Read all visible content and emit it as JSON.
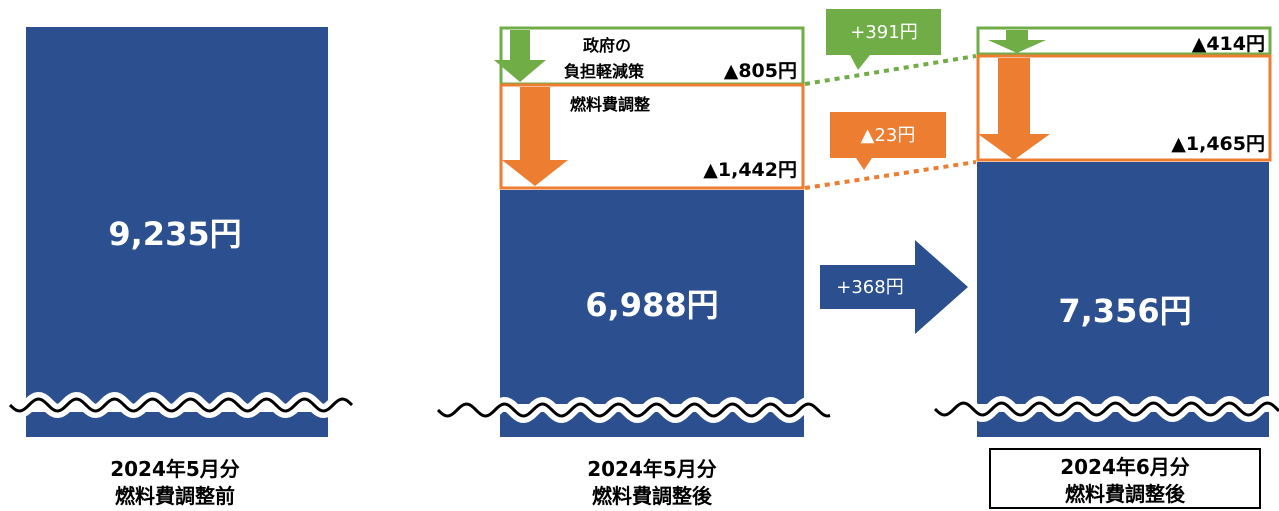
{
  "chart_data": {
    "type": "bar",
    "unit": "円",
    "categories": [
      {
        "line1": "2024年5月分",
        "line2": "燃料費調整前"
      },
      {
        "line1": "2024年5月分",
        "line2": "燃料費調整後"
      },
      {
        "line1": "2024年6月分",
        "line2": "燃料費調整後"
      }
    ],
    "bars": [
      {
        "value_label": "9,235円",
        "value": 9235
      },
      {
        "value_label": "6,988円",
        "value": 6988,
        "reductions": [
          {
            "title_lines": [
              "政府の",
              "負担軽減策"
            ],
            "value_label": "▲805円",
            "value": -805,
            "color": "#70AD47"
          },
          {
            "title_lines": [
              "燃料費調整"
            ],
            "value_label": "▲1,442円",
            "value": -1442,
            "color": "#ED7D31"
          }
        ]
      },
      {
        "value_label": "7,356円",
        "value": 7356,
        "reductions": [
          {
            "title_lines": [],
            "value_label": "▲414円",
            "value": -414,
            "color": "#70AD47"
          },
          {
            "title_lines": [],
            "value_label": "▲1,465円",
            "value": -1465,
            "color": "#ED7D31"
          }
        ]
      }
    ],
    "change_callouts": [
      {
        "label": "+391円",
        "value": 391,
        "color": "#70AD47"
      },
      {
        "label": "▲23円",
        "value": -23,
        "color": "#ED7D31"
      }
    ],
    "total_change": {
      "label": "+368円",
      "value": 368,
      "color": "#2B4F8F"
    },
    "highlighted_category_index": 2
  },
  "colors": {
    "bar": "#2B4F8F",
    "government": "#70AD47",
    "fuel": "#ED7D31",
    "text": "#000000",
    "bar_text": "#ffffff"
  }
}
